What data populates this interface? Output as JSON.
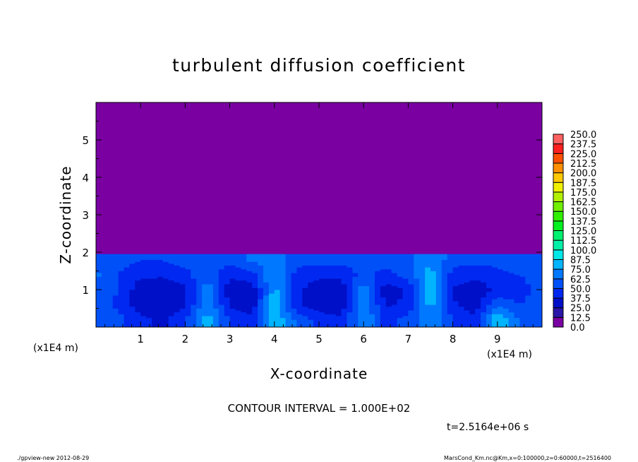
{
  "chart_data": {
    "type": "heatmap",
    "title": "turbulent diffusion coefficient",
    "xlabel": "X-coordinate",
    "ylabel": "Z-coordinate",
    "x_unit_label": "(x1E4 m)",
    "z_unit_label": "(x1E4 m)",
    "xlim": [
      0,
      10
    ],
    "ylim": [
      0,
      6
    ],
    "x_ticks": [
      "1",
      "2",
      "3",
      "4",
      "5",
      "6",
      "7",
      "8",
      "9"
    ],
    "y_ticks": [
      "1",
      "2",
      "3",
      "4",
      "5"
    ],
    "contour_interval_label": "CONTOUR INTERVAL = 1.000E+02",
    "time_label": "t=2.5164e+06 s",
    "field": {
      "x": [
        0,
        0.5,
        1,
        1.5,
        2,
        2.5,
        3,
        3.5,
        4,
        4.5,
        5,
        5.5,
        6,
        6.5,
        7,
        7.5,
        8,
        8.5,
        9,
        9.5,
        10
      ],
      "z": [
        0.2,
        0.6,
        1.0,
        1.4,
        1.8
      ],
      "boundary_layer_top_z": 1.95,
      "value_above_boundary": 0,
      "values": [
        [
          60,
          55,
          40,
          35,
          50,
          80,
          50,
          40,
          85,
          60,
          45,
          40,
          75,
          45,
          55,
          70,
          50,
          40,
          90,
          60,
          55
        ],
        [
          65,
          45,
          30,
          25,
          35,
          75,
          35,
          30,
          85,
          40,
          30,
          30,
          75,
          35,
          40,
          80,
          40,
          30,
          60,
          50,
          55
        ],
        [
          60,
          50,
          30,
          25,
          35,
          70,
          30,
          30,
          80,
          40,
          30,
          30,
          70,
          30,
          40,
          85,
          35,
          30,
          40,
          45,
          55
        ],
        [
          65,
          50,
          40,
          40,
          45,
          60,
          40,
          45,
          75,
          45,
          40,
          40,
          55,
          45,
          55,
          80,
          45,
          40,
          45,
          50,
          55
        ],
        [
          60,
          55,
          50,
          50,
          55,
          55,
          55,
          65,
          70,
          55,
          55,
          55,
          55,
          55,
          60,
          75,
          55,
          55,
          55,
          60,
          55
        ]
      ]
    },
    "colorbar": {
      "labels": [
        "0.0",
        "12.5",
        "25.0",
        "37.5",
        "50.0",
        "62.5",
        "75.0",
        "87.5",
        "100.0",
        "112.5",
        "125.0",
        "137.5",
        "150.0",
        "162.5",
        "175.0",
        "187.5",
        "200.0",
        "212.5",
        "225.0",
        "237.5",
        "250.0"
      ],
      "colors": [
        "#7a00a2",
        "#2a16a8",
        "#0010c8",
        "#0028f0",
        "#0050f8",
        "#0078ff",
        "#00b4ff",
        "#00e8e8",
        "#00f0a8",
        "#00f070",
        "#00f020",
        "#30f000",
        "#70f000",
        "#b0f000",
        "#f0f000",
        "#ffc800",
        "#ff9000",
        "#ff5000",
        "#ff2020",
        "#ff6060"
      ]
    }
  },
  "footer": {
    "left": "./gpview-new   2012-08-29",
    "right": "MarsCond_Km.nc@Km,x=0:100000,z=0:60000,t=2516400"
  }
}
